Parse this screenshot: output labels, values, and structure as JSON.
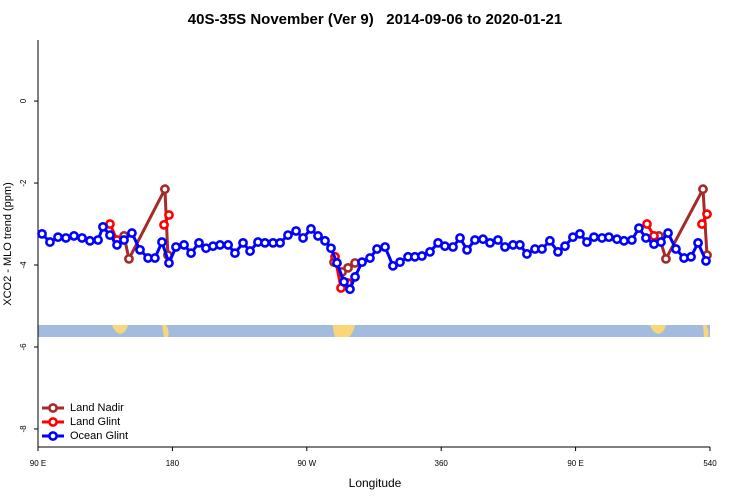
{
  "chart_data": {
    "type": "line",
    "title": "40S-35S November (Ver 9)   2014-09-06 to 2020-01-21",
    "xlabel": "Longitude",
    "ylabel": "XCO2 - MLO trend (ppm)",
    "xlim": [
      90,
      540
    ],
    "ylim": [
      -8.44,
      1.49
    ],
    "xticks": [
      {
        "value": 90,
        "label": "90 E"
      },
      180,
      {
        "value": 270,
        "label": "90 W"
      },
      360,
      {
        "value": 450,
        "label": "90 E"
      },
      540
    ],
    "yticks": [
      -8,
      -6,
      -4,
      -2,
      0
    ],
    "legend": "bottom-left",
    "series": [
      {
        "name": "Land Nadir",
        "color": "#a52a2a",
        "x": [
          147.6,
          150.9,
          175.0,
          177.0,
          null,
          288.2,
          293.6,
          297.6,
          302.3,
          null,
          505.8,
          510.5,
          535.3,
          538.0
        ],
        "values": [
          -3.29,
          -3.85,
          -2.15,
          -3.76,
          null,
          -3.93,
          -4.17,
          -4.07,
          -3.95,
          null,
          -3.29,
          -3.85,
          -2.15,
          -3.76
        ]
      },
      {
        "name": "Land Glint",
        "color": "#ff0000",
        "x": [
          138.2,
          142.9,
          null,
          174.4,
          177.7,
          null,
          288.9,
          292.9,
          297.6,
          null,
          497.8,
          502.5,
          null,
          534.6,
          538.0
        ],
        "values": [
          -3.0,
          -3.39,
          null,
          -3.02,
          -2.78,
          null,
          -3.8,
          -4.56,
          -4.44,
          null,
          -3.0,
          -3.29,
          null,
          -3.0,
          -2.76
        ]
      },
      {
        "name": "Ocean Glint",
        "color": "#0000ff",
        "x": [
          92.7,
          98.0,
          103.4,
          108.7,
          114.1,
          119.5,
          124.8,
          130.2,
          133.5,
          138.2,
          142.9,
          147.6,
          152.9,
          158.3,
          163.7,
          168.3,
          173.0,
          177.7,
          182.4,
          187.8,
          192.5,
          197.8,
          202.5,
          207.2,
          211.9,
          217.3,
          221.9,
          227.3,
          232.0,
          237.3,
          242.0,
          247.4,
          252.1,
          257.4,
          262.8,
          267.5,
          272.8,
          277.5,
          282.2,
          286.2,
          290.2,
          294.9,
          298.9,
          302.3,
          307.0,
          312.3,
          317.0,
          322.4,
          327.7,
          332.4,
          337.8,
          342.4,
          347.1,
          352.5,
          357.9,
          362.5,
          367.9,
          372.6,
          377.3,
          382.6,
          388.0,
          392.7,
          398.0,
          402.7,
          408.1,
          412.7,
          417.4,
          422.8,
          427.5,
          432.8,
          438.2,
          442.9,
          448.2,
          452.9,
          457.6,
          462.3,
          467.7,
          472.3,
          477.7,
          482.4,
          487.7,
          492.4,
          497.1,
          502.5,
          507.2,
          511.9,
          517.2,
          522.6,
          527.3,
          532.0,
          537.3
        ],
        "values": [
          -3.24,
          -3.44,
          -3.32,
          -3.34,
          -3.29,
          -3.34,
          -3.41,
          -3.39,
          -3.07,
          -3.27,
          -3.51,
          -3.39,
          -3.22,
          -3.63,
          -3.83,
          -3.83,
          -3.44,
          -3.95,
          -3.56,
          -3.51,
          -3.71,
          -3.46,
          -3.59,
          -3.54,
          -3.51,
          -3.51,
          -3.71,
          -3.46,
          -3.66,
          -3.44,
          -3.46,
          -3.46,
          -3.46,
          -3.27,
          -3.17,
          -3.34,
          -3.12,
          -3.29,
          -3.41,
          -3.59,
          -3.95,
          -4.41,
          -4.59,
          -4.29,
          -3.93,
          -3.83,
          -3.61,
          -3.56,
          -4.02,
          -3.93,
          -3.8,
          -3.8,
          -3.78,
          -3.68,
          -3.46,
          -3.54,
          -3.56,
          -3.34,
          -3.63,
          -3.39,
          -3.37,
          -3.46,
          -3.39,
          -3.56,
          -3.51,
          -3.51,
          -3.73,
          -3.61,
          -3.61,
          -3.41,
          -3.68,
          -3.54,
          -3.32,
          -3.24,
          -3.44,
          -3.32,
          -3.34,
          -3.32,
          -3.37,
          -3.41,
          -3.39,
          -3.1,
          -3.34,
          -3.49,
          -3.44,
          -3.22,
          -3.61,
          -3.83,
          -3.8,
          -3.46,
          -3.9
        ]
      }
    ]
  }
}
